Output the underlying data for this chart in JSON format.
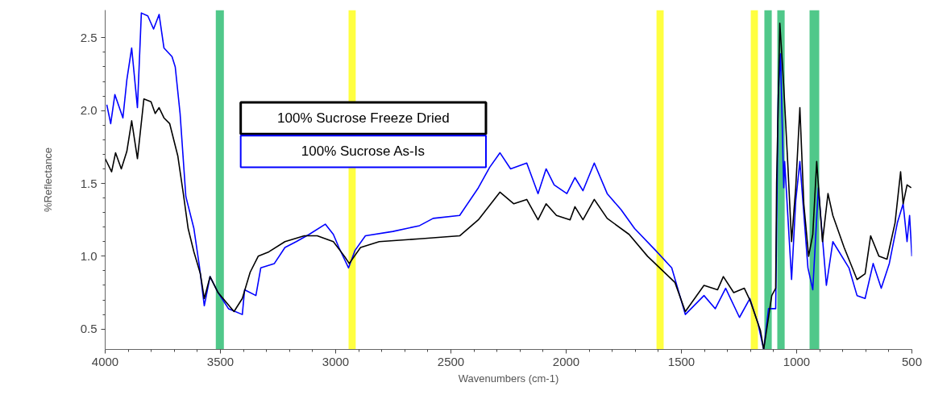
{
  "chart_data": {
    "type": "line",
    "xlabel": "Wavenumbers (cm-1)",
    "ylabel": "%Reflectance",
    "xlim": [
      4000,
      500
    ],
    "ylim": [
      0.36,
      2.69
    ],
    "xticks": [
      4000,
      3500,
      3000,
      2500,
      2000,
      1500,
      1000,
      500
    ],
    "yticks": [
      {
        "value": 0.5,
        "label": "0.5"
      },
      {
        "value": 1.0,
        "label": "1.0"
      },
      {
        "value": 1.5,
        "label": "1.5"
      },
      {
        "value": 2.0,
        "label": "2.0"
      },
      {
        "value": 2.5,
        "label": "2.5"
      }
    ],
    "grid": false,
    "legend": "top left",
    "line_style": "solid",
    "marker": "none",
    "series": [
      {
        "name": "100% Sucrose Freeze Dried",
        "color": "#000000",
        "x": [
          4000,
          3972,
          3955,
          3930,
          3906,
          3885,
          3860,
          3832,
          3801,
          3783,
          3766,
          3745,
          3720,
          3685,
          3661,
          3640,
          3615,
          3587,
          3570,
          3545,
          3510,
          3441,
          3405,
          3371,
          3336,
          3290,
          3220,
          3136,
          3080,
          3010,
          2962,
          2941,
          2892,
          2811,
          2636,
          2462,
          2381,
          2287,
          2227,
          2171,
          2122,
          2087,
          2042,
          1983,
          1962,
          1927,
          1878,
          1822,
          1727,
          1647,
          1528,
          1483,
          1402,
          1343,
          1318,
          1273,
          1227,
          1203,
          1157,
          1143,
          1108,
          1091,
          1087,
          1073,
          1056,
          1039,
          1022,
          1004,
          986,
          969,
          948,
          930,
          913,
          888,
          864,
          843,
          794,
          738,
          703,
          679,
          643,
          608,
          573,
          549,
          538,
          521,
          503
        ],
        "values": [
          1.67,
          1.58,
          1.71,
          1.6,
          1.72,
          1.93,
          1.67,
          2.08,
          2.06,
          1.98,
          2.02,
          1.95,
          1.91,
          1.69,
          1.43,
          1.19,
          1.03,
          0.88,
          0.71,
          0.86,
          0.75,
          0.62,
          0.71,
          0.89,
          1.0,
          1.03,
          1.1,
          1.14,
          1.14,
          1.1,
          1.0,
          0.95,
          1.06,
          1.1,
          1.12,
          1.14,
          1.25,
          1.44,
          1.36,
          1.39,
          1.25,
          1.36,
          1.28,
          1.25,
          1.34,
          1.25,
          1.39,
          1.26,
          1.15,
          1.0,
          0.82,
          0.62,
          0.8,
          0.77,
          0.86,
          0.75,
          0.78,
          0.7,
          0.49,
          0.36,
          0.73,
          0.78,
          1.5,
          2.6,
          2.17,
          1.65,
          1.1,
          1.47,
          2.02,
          1.36,
          1.0,
          1.15,
          1.65,
          1.1,
          1.43,
          1.28,
          1.06,
          0.84,
          0.88,
          1.14,
          1.0,
          0.98,
          1.23,
          1.58,
          1.36,
          1.49,
          1.47
        ]
      },
      {
        "name": "100% Sucrose As-Is",
        "color": "#0000ff",
        "x": [
          3993,
          3976,
          3958,
          3923,
          3906,
          3885,
          3860,
          3843,
          3815,
          3790,
          3766,
          3745,
          3710,
          3696,
          3675,
          3650,
          3615,
          3591,
          3570,
          3545,
          3510,
          3465,
          3405,
          3395,
          3346,
          3325,
          3266,
          3220,
          3171,
          3115,
          3045,
          3010,
          2986,
          2944,
          2916,
          2871,
          2752,
          2636,
          2577,
          2462,
          2381,
          2332,
          2287,
          2241,
          2171,
          2122,
          2087,
          2052,
          1997,
          1962,
          1927,
          1878,
          1822,
          1762,
          1703,
          1612,
          1542,
          1483,
          1402,
          1353,
          1308,
          1248,
          1203,
          1168,
          1143,
          1122,
          1091,
          1080,
          1070,
          1056,
          1052,
          1022,
          1004,
          986,
          951,
          930,
          906,
          871,
          843,
          773,
          738,
          703,
          668,
          633,
          598,
          563,
          538,
          521,
          510,
          500
        ],
        "values": [
          2.04,
          1.91,
          2.11,
          1.95,
          2.21,
          2.43,
          2.02,
          2.67,
          2.65,
          2.56,
          2.66,
          2.43,
          2.37,
          2.3,
          1.98,
          1.41,
          1.19,
          0.93,
          0.66,
          0.86,
          0.75,
          0.64,
          0.6,
          0.77,
          0.73,
          0.92,
          0.95,
          1.06,
          1.1,
          1.15,
          1.22,
          1.15,
          1.06,
          0.92,
          1.04,
          1.14,
          1.17,
          1.21,
          1.26,
          1.28,
          1.47,
          1.61,
          1.71,
          1.6,
          1.64,
          1.43,
          1.6,
          1.49,
          1.43,
          1.54,
          1.45,
          1.64,
          1.43,
          1.32,
          1.19,
          1.04,
          0.92,
          0.6,
          0.73,
          0.64,
          0.78,
          0.58,
          0.71,
          0.54,
          0.36,
          0.64,
          0.64,
          2.1,
          2.39,
          1.47,
          1.65,
          0.84,
          1.38,
          1.65,
          0.92,
          0.77,
          1.47,
          0.8,
          1.1,
          0.92,
          0.73,
          0.71,
          0.95,
          0.78,
          0.95,
          1.23,
          1.36,
          1.1,
          1.28,
          1.0
        ]
      }
    ],
    "bands": [
      {
        "axis": "x",
        "from": 3520,
        "to": 3485,
        "color": "#50c88a"
      },
      {
        "axis": "x",
        "from": 2944,
        "to": 2913,
        "color": "#ffff40"
      },
      {
        "axis": "x",
        "from": 1608,
        "to": 1577,
        "color": "#ffff40"
      },
      {
        "axis": "x",
        "from": 1199,
        "to": 1168,
        "color": "#ffff40"
      },
      {
        "axis": "x",
        "from": 1140,
        "to": 1108,
        "color": "#50c88a"
      },
      {
        "axis": "x",
        "from": 1084,
        "to": 1052,
        "color": "#50c88a"
      },
      {
        "axis": "x",
        "from": 944,
        "to": 902,
        "color": "#50c88a"
      }
    ]
  }
}
